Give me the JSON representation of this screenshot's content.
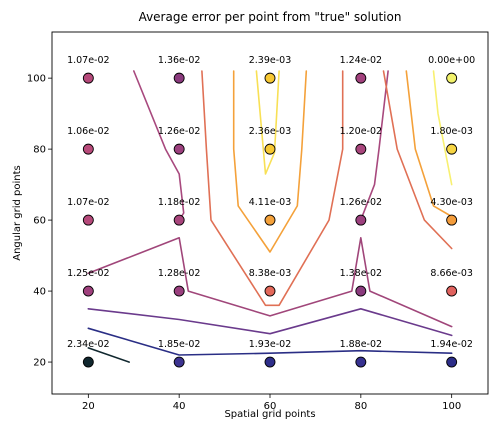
{
  "chart_data": {
    "type": "scatter",
    "title": "Average error per point from \"true\" solution",
    "xlabel": "Spatial grid points",
    "ylabel": "Angular grid points",
    "xlim": [
      12,
      108
    ],
    "ylim": [
      11,
      113
    ],
    "xticks": [
      20,
      40,
      60,
      80,
      100
    ],
    "yticks": [
      20,
      40,
      60,
      80,
      100
    ],
    "grid": false,
    "legend": "none",
    "points": [
      {
        "x": 20,
        "y": 100,
        "label": "1.07e-02",
        "color": "#b5497a"
      },
      {
        "x": 40,
        "y": 100,
        "label": "1.36e-02",
        "color": "#8a3a7d"
      },
      {
        "x": 60,
        "y": 100,
        "label": "2.39e-03",
        "color": "#f7c832"
      },
      {
        "x": 80,
        "y": 100,
        "label": "1.24e-02",
        "color": "#a2417d"
      },
      {
        "x": 100,
        "y": 100,
        "label": "0.00e+00",
        "color": "#f2f26b"
      },
      {
        "x": 20,
        "y": 80,
        "label": "1.06e-02",
        "color": "#b84a7a"
      },
      {
        "x": 40,
        "y": 80,
        "label": "1.26e-02",
        "color": "#9c407e"
      },
      {
        "x": 60,
        "y": 80,
        "label": "2.36e-03",
        "color": "#f7c832"
      },
      {
        "x": 80,
        "y": 80,
        "label": "1.20e-02",
        "color": "#a8457c"
      },
      {
        "x": 100,
        "y": 80,
        "label": "1.80e-03",
        "color": "#f6d443"
      },
      {
        "x": 20,
        "y": 60,
        "label": "1.07e-02",
        "color": "#b5497a"
      },
      {
        "x": 40,
        "y": 60,
        "label": "1.18e-02",
        "color": "#a8457c"
      },
      {
        "x": 60,
        "y": 60,
        "label": "4.11e-03",
        "color": "#f4a13a"
      },
      {
        "x": 80,
        "y": 60,
        "label": "1.26e-02",
        "color": "#9c407e"
      },
      {
        "x": 100,
        "y": 60,
        "label": "4.30e-03",
        "color": "#f39c3b"
      },
      {
        "x": 20,
        "y": 40,
        "label": "1.25e-02",
        "color": "#9f407d"
      },
      {
        "x": 40,
        "y": 40,
        "label": "1.28e-02",
        "color": "#9a3f7e"
      },
      {
        "x": 60,
        "y": 40,
        "label": "8.38e-03",
        "color": "#e3685a"
      },
      {
        "x": 80,
        "y": 40,
        "label": "1.38e-02",
        "color": "#8a3a7d"
      },
      {
        "x": 100,
        "y": 40,
        "label": "8.66e-03",
        "color": "#e0625e"
      },
      {
        "x": 20,
        "y": 20,
        "label": "2.34e-02",
        "color": "#10272e"
      },
      {
        "x": 40,
        "y": 20,
        "label": "1.85e-02",
        "color": "#3c3390"
      },
      {
        "x": 60,
        "y": 20,
        "label": "1.93e-02",
        "color": "#2e2e8a"
      },
      {
        "x": 80,
        "y": 20,
        "label": "1.88e-02",
        "color": "#363190"
      },
      {
        "x": 100,
        "y": 20,
        "label": "1.94e-02",
        "color": "#2c2d88"
      }
    ],
    "contours": [
      {
        "color": "#10272e",
        "points": [
          [
            20,
            24
          ],
          [
            29,
            20
          ]
        ]
      },
      {
        "color": "#2a2e85",
        "points": [
          [
            20,
            29.5
          ],
          [
            40,
            22
          ],
          [
            60,
            22.5
          ],
          [
            80,
            23.2
          ],
          [
            100,
            22.5
          ]
        ]
      },
      {
        "color": "#6a3a8c",
        "points": [
          [
            20,
            35
          ],
          [
            40,
            32
          ],
          [
            60,
            28
          ],
          [
            80,
            35
          ],
          [
            100,
            27.5
          ]
        ]
      },
      {
        "color": "#a0467a",
        "points": [
          [
            20,
            45
          ],
          [
            40,
            55
          ],
          [
            42,
            40
          ],
          [
            60,
            33
          ],
          [
            78,
            40
          ],
          [
            80,
            55
          ],
          [
            82,
            40
          ],
          [
            100,
            30
          ]
        ]
      },
      {
        "color": "#a8497e",
        "points": [
          [
            30,
            102
          ],
          [
            37,
            80
          ],
          [
            40,
            73
          ],
          [
            41,
            62
          ],
          [
            40,
            60
          ]
        ]
      },
      {
        "color": "#a8497e",
        "points": [
          [
            80,
            60
          ],
          [
            83,
            70
          ],
          [
            84,
            80
          ],
          [
            86,
            102
          ]
        ]
      },
      {
        "color": "#e07055",
        "points": [
          [
            45,
            102
          ],
          [
            46,
            80
          ],
          [
            47,
            60
          ],
          [
            59,
            36
          ],
          [
            62,
            36
          ],
          [
            73,
            60
          ],
          [
            76,
            80
          ],
          [
            76,
            102
          ]
        ]
      },
      {
        "color": "#e07055",
        "points": [
          [
            85,
            102
          ],
          [
            88,
            80
          ],
          [
            94,
            60
          ],
          [
            100,
            52
          ]
        ]
      },
      {
        "color": "#f4a13a",
        "points": [
          [
            52,
            102
          ],
          [
            52,
            80
          ],
          [
            53,
            64
          ],
          [
            60,
            51
          ],
          [
            66,
            64
          ],
          [
            67,
            80
          ],
          [
            68,
            102
          ]
        ]
      },
      {
        "color": "#f4a13a",
        "points": [
          [
            90,
            102
          ],
          [
            92,
            80
          ],
          [
            96,
            64
          ],
          [
            100,
            61
          ]
        ]
      },
      {
        "color": "#f8e055",
        "points": [
          [
            57,
            102
          ],
          [
            59,
            73
          ],
          [
            61,
            79
          ],
          [
            62,
            102
          ]
        ]
      },
      {
        "color": "#f8f070",
        "points": [
          [
            96,
            102
          ],
          [
            97,
            90
          ],
          [
            100,
            70
          ]
        ]
      }
    ]
  }
}
